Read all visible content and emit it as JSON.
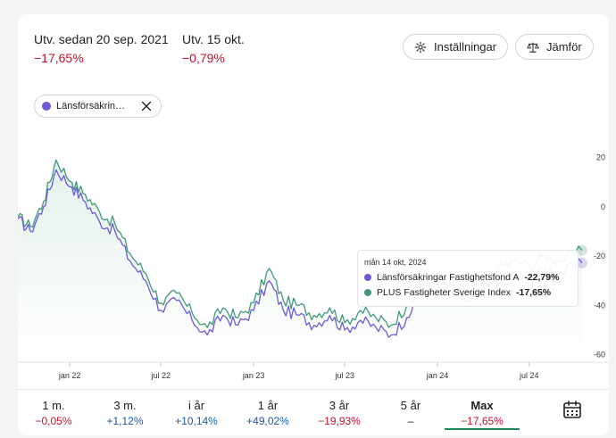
{
  "stats": [
    {
      "label": "Utv. sedan 20 sep. 2021",
      "value": "−17,65%"
    },
    {
      "label": "Utv. 15 okt.",
      "value": "−0,79%"
    }
  ],
  "buttons": {
    "settings": "Inställningar",
    "compare": "Jämför"
  },
  "chip": {
    "label": "Länsförsäkrin…"
  },
  "tooltip": {
    "date": "mån 14 okt, 2024",
    "rows": [
      {
        "name": "Länsförsäkringar Fastighetsfond A",
        "value": "-22,79%",
        "color": "#6b5bd6"
      },
      {
        "name": "PLUS Fastigheter Sverige Index",
        "value": "-17,65%",
        "color": "#3f9a74"
      }
    ]
  },
  "periods": [
    {
      "label": "1 m.",
      "value": "−0,05%",
      "tone": "neg"
    },
    {
      "label": "3 m.",
      "value": "+1,12%",
      "tone": "pos"
    },
    {
      "label": "i år",
      "value": "+10,14%",
      "tone": "pos"
    },
    {
      "label": "1 år",
      "value": "+49,02%",
      "tone": "pos"
    },
    {
      "label": "3 år",
      "value": "−19,93%",
      "tone": "neg"
    },
    {
      "label": "5 år",
      "value": "–",
      "tone": "neu"
    },
    {
      "label": "Max",
      "value": "−17,65%",
      "tone": "neg",
      "active": true
    }
  ],
  "colors": {
    "fund": "#6b5bd6",
    "index": "#3f9a74",
    "negative": "#c8102e",
    "positive": "#1a5aa6"
  },
  "chart_data": {
    "type": "line",
    "x_ticks": [
      "jan 22",
      "jul 22",
      "jan 23",
      "jul 23",
      "jan 24",
      "jul 24"
    ],
    "y_ticks": [
      20,
      0,
      -20,
      -40,
      -60
    ],
    "ylim": [
      -63,
      22
    ],
    "series": [
      {
        "name": "Länsförsäkringar Fastighetsfond A",
        "color": "#6b5bd6",
        "points": [
          [
            "2021-09-20",
            -5
          ],
          [
            "2021-10-15",
            -10
          ],
          [
            "2021-11-10",
            0
          ],
          [
            "2021-12-05",
            15
          ],
          [
            "2022-01-05",
            8
          ],
          [
            "2022-02-01",
            2
          ],
          [
            "2022-03-01",
            -6
          ],
          [
            "2022-04-01",
            -10
          ],
          [
            "2022-05-01",
            -22
          ],
          [
            "2022-06-01",
            -30
          ],
          [
            "2022-07-01",
            -42
          ],
          [
            "2022-08-01",
            -38
          ],
          [
            "2022-09-01",
            -46
          ],
          [
            "2022-10-01",
            -52
          ],
          [
            "2022-11-01",
            -44
          ],
          [
            "2022-12-01",
            -48
          ],
          [
            "2023-01-01",
            -42
          ],
          [
            "2023-02-01",
            -30
          ],
          [
            "2023-03-01",
            -42
          ],
          [
            "2023-04-01",
            -44
          ],
          [
            "2023-05-01",
            -48
          ],
          [
            "2023-06-01",
            -44
          ],
          [
            "2023-07-01",
            -50
          ],
          [
            "2023-08-01",
            -46
          ],
          [
            "2023-09-01",
            -49
          ],
          [
            "2023-10-01",
            -52
          ],
          [
            "2023-11-01",
            -45
          ],
          [
            "2023-12-01",
            -33
          ],
          [
            "2024-01-01",
            -34
          ],
          [
            "2024-02-01",
            -36
          ],
          [
            "2024-03-01",
            -38
          ],
          [
            "2024-04-01",
            -34
          ],
          [
            "2024-05-01",
            -30
          ],
          [
            "2024-06-01",
            -28
          ],
          [
            "2024-07-01",
            -30
          ],
          [
            "2024-08-01",
            -25
          ],
          [
            "2024-09-01",
            -27
          ],
          [
            "2024-10-14",
            -22.79
          ]
        ]
      },
      {
        "name": "PLUS Fastigheter Sverige Index",
        "color": "#3f9a74",
        "points": [
          [
            "2021-09-20",
            -4
          ],
          [
            "2021-10-15",
            -8
          ],
          [
            "2021-11-10",
            2
          ],
          [
            "2021-12-05",
            19
          ],
          [
            "2022-01-05",
            10
          ],
          [
            "2022-02-01",
            5
          ],
          [
            "2022-03-01",
            -2
          ],
          [
            "2022-04-01",
            -7
          ],
          [
            "2022-05-01",
            -19
          ],
          [
            "2022-06-01",
            -27
          ],
          [
            "2022-07-01",
            -39
          ],
          [
            "2022-08-01",
            -35
          ],
          [
            "2022-09-01",
            -43
          ],
          [
            "2022-10-01",
            -49
          ],
          [
            "2022-11-01",
            -41
          ],
          [
            "2022-12-01",
            -45
          ],
          [
            "2023-01-01",
            -39
          ],
          [
            "2023-02-01",
            -25
          ],
          [
            "2023-03-01",
            -38
          ],
          [
            "2023-04-01",
            -40
          ],
          [
            "2023-05-01",
            -44
          ],
          [
            "2023-06-01",
            -41
          ],
          [
            "2023-07-01",
            -47
          ],
          [
            "2023-08-01",
            -42
          ],
          [
            "2023-09-01",
            -45
          ],
          [
            "2023-10-01",
            -48
          ],
          [
            "2023-11-01",
            -40
          ],
          [
            "2023-12-01",
            -30
          ],
          [
            "2024-01-01",
            -31
          ],
          [
            "2024-02-01",
            -33
          ],
          [
            "2024-03-01",
            -34
          ],
          [
            "2024-04-01",
            -30
          ],
          [
            "2024-05-01",
            -25
          ],
          [
            "2024-06-01",
            -22
          ],
          [
            "2024-07-01",
            -24
          ],
          [
            "2024-08-01",
            -20
          ],
          [
            "2024-09-01",
            -22
          ],
          [
            "2024-10-14",
            -17.65
          ]
        ]
      }
    ]
  }
}
